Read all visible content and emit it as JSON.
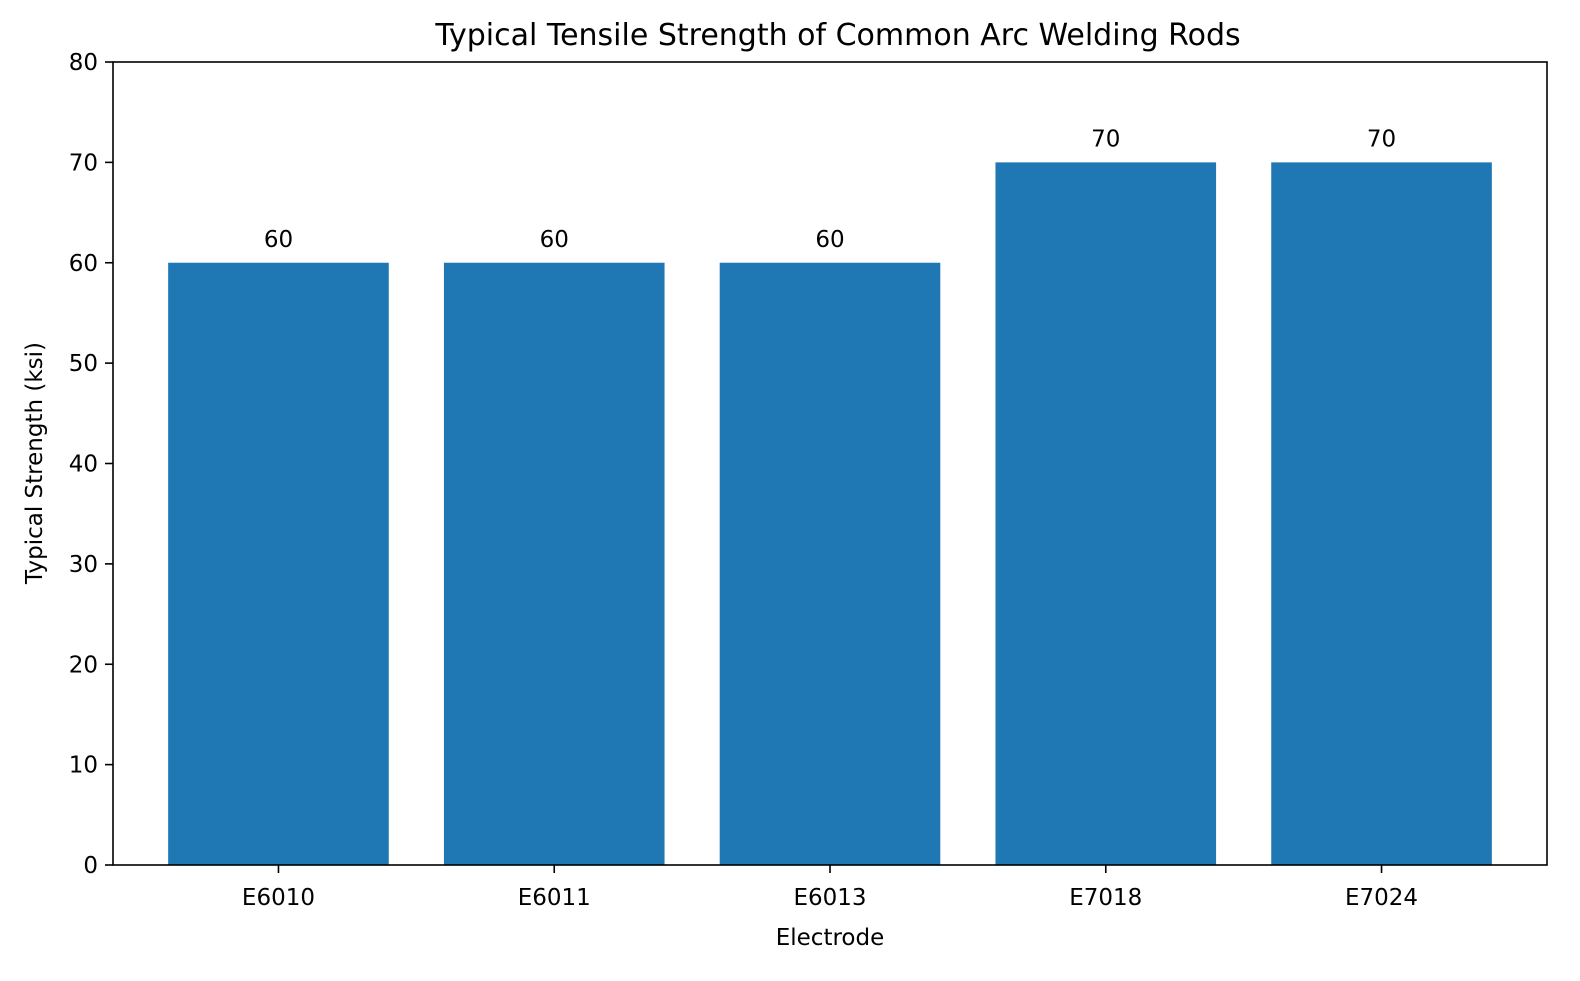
{
  "chart_data": {
    "type": "bar",
    "title": "Typical Tensile Strength of Common Arc Welding Rods",
    "xlabel": "Electrode",
    "ylabel": "Typical Strength (ksi)",
    "categories": [
      "E6010",
      "E6011",
      "E6013",
      "E7018",
      "E7024"
    ],
    "values": [
      60,
      60,
      60,
      70,
      70
    ],
    "data_labels": [
      "60",
      "60",
      "60",
      "70",
      "70"
    ],
    "ylim": [
      0,
      80
    ],
    "yticks": [
      0,
      10,
      20,
      30,
      40,
      50,
      60,
      70,
      80
    ],
    "ytick_labels": [
      "0",
      "10",
      "20",
      "30",
      "40",
      "50",
      "60",
      "70",
      "80"
    ],
    "bar_color": "#1f77b4",
    "grid": false,
    "legend": "none"
  }
}
